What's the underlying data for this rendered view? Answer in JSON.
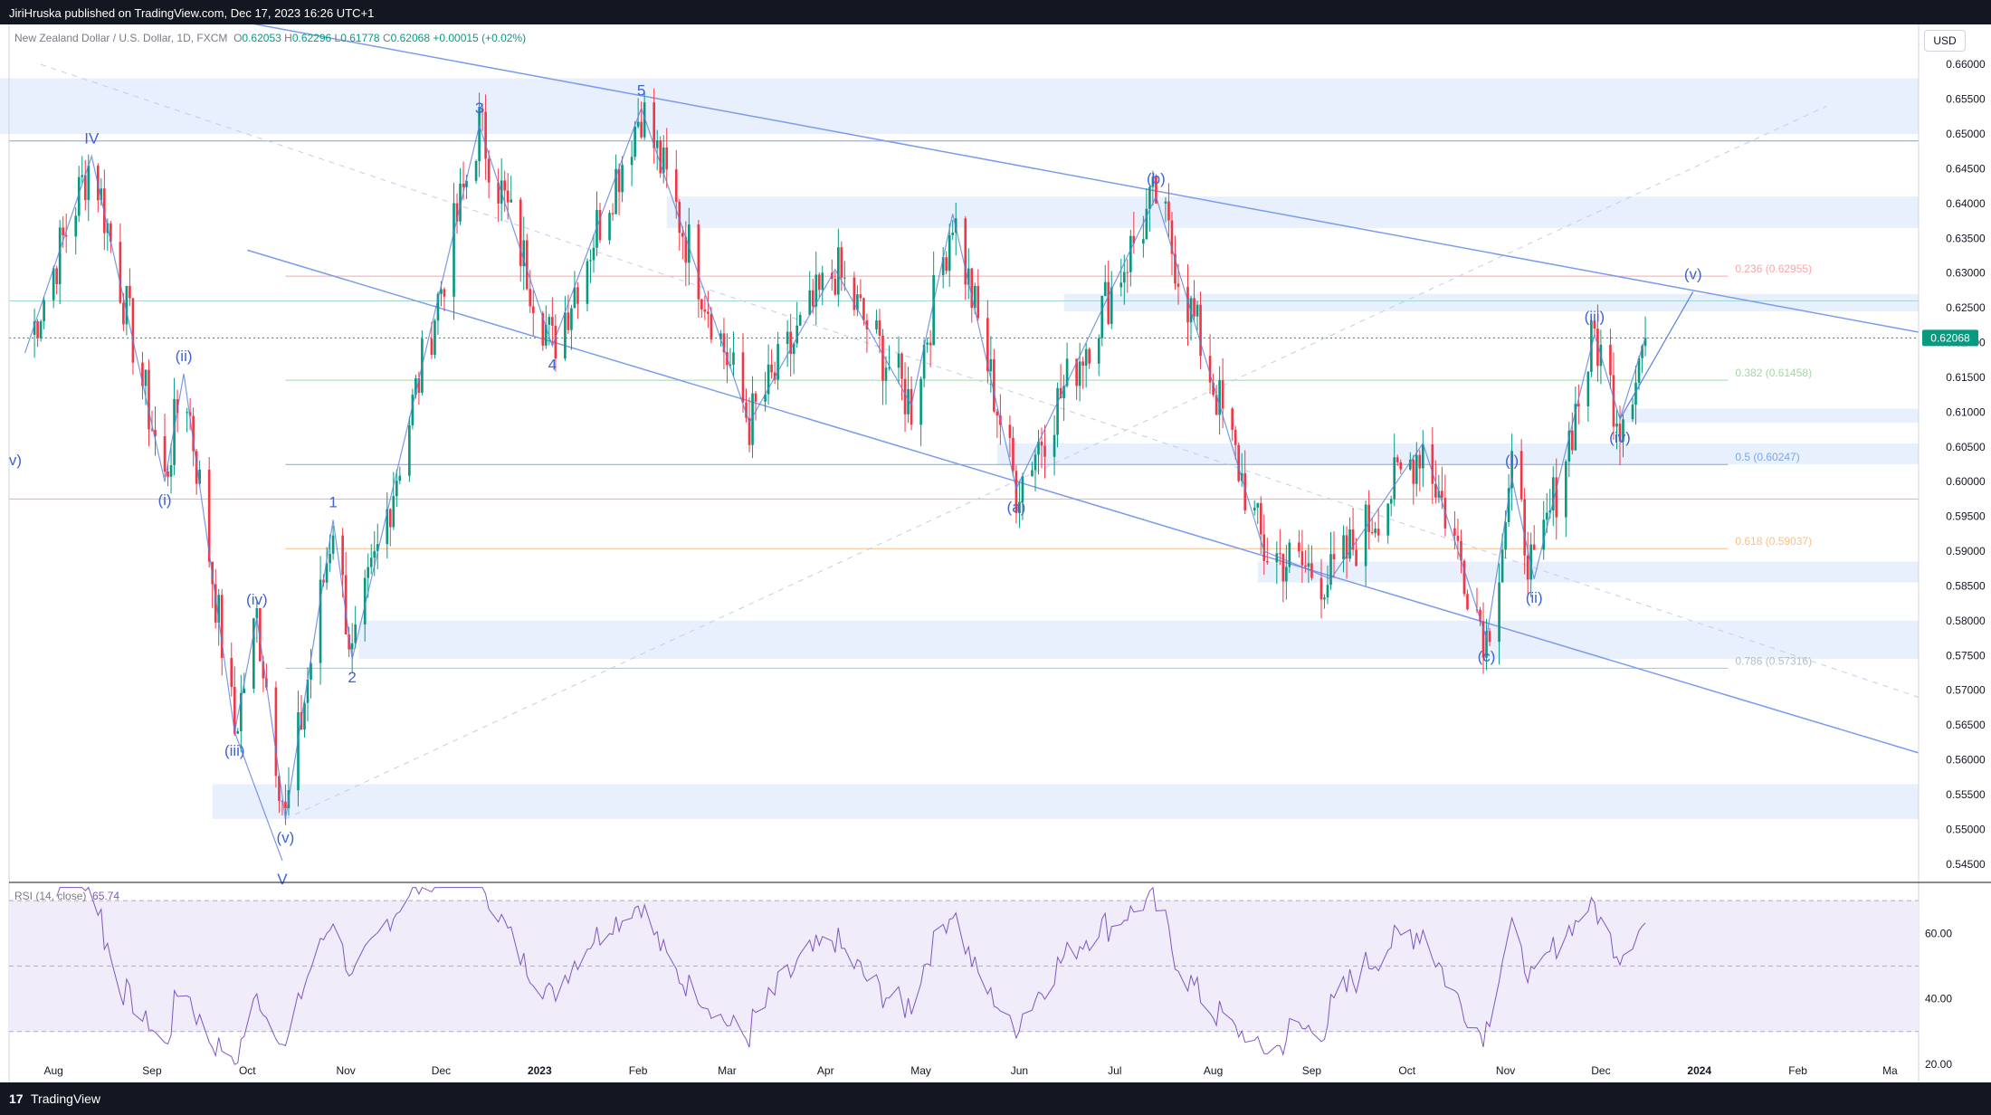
{
  "publisher": "JiriHruska published on TradingView.com, Dec 17, 2023 16:26 UTC+1",
  "footer_brand": "TradingView",
  "footer_logo": "17",
  "currency_button": "USD",
  "header": {
    "symbol": "New Zealand Dollar / U.S. Dollar, 1D, FXCM",
    "open": "0.62053",
    "high": "0.62296",
    "low": "0.61778",
    "close": "0.62068",
    "change": "+0.00015 (+0.02%)"
  },
  "rsi": {
    "label": "RSI (14, close)",
    "value": "65.74"
  },
  "colors": {
    "up": "#089981",
    "down": "#f23645",
    "wave": "#5b7fe0",
    "channel": "#7b9cec",
    "zone": "#e8effd",
    "rsi_line": "#7e57c2",
    "rsi_band": "#f1ecfa"
  },
  "chart_data": {
    "type": "candlestick",
    "title": "New Zealand Dollar / U.S. Dollar, 1D, FXCM",
    "ylim": [
      0.5425,
      0.6625
    ],
    "y_ticks": [
      "0.66000",
      "0.65500",
      "0.65000",
      "0.64500",
      "0.64000",
      "0.63500",
      "0.63000",
      "0.62500",
      "0.62000",
      "0.61500",
      "0.61000",
      "0.60500",
      "0.60000",
      "0.59500",
      "0.59000",
      "0.58500",
      "0.58000",
      "0.57500",
      "0.57000",
      "0.56500",
      "0.56000",
      "0.55500",
      "0.55000",
      "0.54500"
    ],
    "x_ticks": [
      "Aug",
      "Sep",
      "Oct",
      "Nov",
      "Dec",
      "2023",
      "Feb",
      "Mar",
      "Apr",
      "May",
      "Jun",
      "Jul",
      "Aug",
      "Sep",
      "Oct",
      "Nov",
      "Dec",
      "2024",
      "Feb",
      "Ma"
    ],
    "last_price": "0.62068",
    "swing_points": [
      {
        "date": "2022-07-23",
        "price": 0.6185
      },
      {
        "date": "2022-08-13",
        "price": 0.6468
      },
      {
        "date": "2022-09-05",
        "price": 0.6
      },
      {
        "date": "2022-09-11",
        "price": 0.6155
      },
      {
        "date": "2022-09-27",
        "price": 0.564
      },
      {
        "date": "2022-10-04",
        "price": 0.5805
      },
      {
        "date": "2022-10-13",
        "price": 0.5515
      },
      {
        "date": "2022-10-28",
        "price": 0.5945
      },
      {
        "date": "2022-11-03",
        "price": 0.5745
      },
      {
        "date": "2022-12-13",
        "price": 0.6512
      },
      {
        "date": "2023-01-05",
        "price": 0.6195
      },
      {
        "date": "2023-02-02",
        "price": 0.6537
      },
      {
        "date": "2023-03-08",
        "price": 0.6085
      },
      {
        "date": "2023-04-04",
        "price": 0.6305
      },
      {
        "date": "2023-04-28",
        "price": 0.611
      },
      {
        "date": "2023-05-11",
        "price": 0.6385
      },
      {
        "date": "2023-05-31",
        "price": 0.599
      },
      {
        "date": "2023-07-14",
        "price": 0.641
      },
      {
        "date": "2023-08-17",
        "price": 0.59
      },
      {
        "date": "2023-09-07",
        "price": 0.586
      },
      {
        "date": "2023-10-06",
        "price": 0.6055
      },
      {
        "date": "2023-10-26",
        "price": 0.5775
      },
      {
        "date": "2023-11-03",
        "price": 0.6005
      },
      {
        "date": "2023-11-10",
        "price": 0.586
      },
      {
        "date": "2023-11-29",
        "price": 0.6212
      },
      {
        "date": "2023-12-07",
        "price": 0.609
      },
      {
        "date": "2023-12-15",
        "price": 0.6207
      }
    ],
    "wave_labels": [
      {
        "text": "IV",
        "date": "2022-08-13",
        "price": 0.6468,
        "pos": "above"
      },
      {
        "text": "(ii)",
        "date": "2022-09-11",
        "price": 0.6155,
        "pos": "above"
      },
      {
        "text": "(i)",
        "date": "2022-09-05",
        "price": 0.6,
        "pos": "below"
      },
      {
        "text": "(iv)",
        "date": "2022-10-04",
        "price": 0.5805,
        "pos": "above"
      },
      {
        "text": "(iii)",
        "date": "2022-09-27",
        "price": 0.564,
        "pos": "below"
      },
      {
        "text": "(v)",
        "date": "2022-10-13",
        "price": 0.5515,
        "pos": "below"
      },
      {
        "text": "V",
        "date": "2022-10-12",
        "price": 0.5455,
        "pos": "below"
      },
      {
        "text": "1",
        "date": "2022-10-28",
        "price": 0.5945,
        "pos": "above"
      },
      {
        "text": "2",
        "date": "2022-11-03",
        "price": 0.5745,
        "pos": "below"
      },
      {
        "text": "3",
        "date": "2022-12-13",
        "price": 0.6512,
        "pos": "above"
      },
      {
        "text": "4",
        "date": "2023-01-05",
        "price": 0.6195,
        "pos": "below"
      },
      {
        "text": "5",
        "date": "2023-02-02",
        "price": 0.6537,
        "pos": "above"
      },
      {
        "text": "(a)",
        "date": "2023-05-31",
        "price": 0.599,
        "pos": "below"
      },
      {
        "text": "(b)",
        "date": "2023-07-14",
        "price": 0.641,
        "pos": "above"
      },
      {
        "text": "(c)",
        "date": "2023-10-26",
        "price": 0.5775,
        "pos": "below"
      },
      {
        "text": "(i)",
        "date": "2023-11-03",
        "price": 0.6005,
        "pos": "above"
      },
      {
        "text": "(ii)",
        "date": "2023-11-10",
        "price": 0.586,
        "pos": "below"
      },
      {
        "text": "(iii)",
        "date": "2023-11-29",
        "price": 0.6212,
        "pos": "above"
      },
      {
        "text": "(iv)",
        "date": "2023-12-07",
        "price": 0.609,
        "pos": "below"
      },
      {
        "text": "(v)",
        "date": "2023-12-30",
        "price": 0.6273,
        "pos": "above"
      },
      {
        "text": "v)",
        "date": "2022-07-20",
        "price": 0.603,
        "pos": "center"
      }
    ],
    "projection": [
      {
        "date": "2023-12-07",
        "price": 0.609
      },
      {
        "date": "2023-12-30",
        "price": 0.6273
      }
    ],
    "fib_levels": [
      {
        "label": "0.236 (0.62955)",
        "price": 0.62955,
        "color": "#f7a6aa"
      },
      {
        "label": "0.382 (0.61458)",
        "price": 0.61458,
        "color": "#a5d6a7"
      },
      {
        "label": "0.5 (0.60247)",
        "price": 0.60247,
        "color": "#7aa8e8"
      },
      {
        "label": "0.618 (0.59037)",
        "price": 0.59037,
        "color": "#f6c08a"
      },
      {
        "label": "0.786 (0.57316)",
        "price": 0.57316,
        "color": "#b0bec5"
      }
    ],
    "horizontal_lines": [
      0.649,
      0.626,
      0.5975
    ],
    "zones": [
      {
        "start": "2022-07-15",
        "end": "2024-03-10",
        "top": 0.658,
        "bottom": 0.65
      },
      {
        "start": "2023-02-10",
        "end": "2024-03-10",
        "top": 0.641,
        "bottom": 0.6365
      },
      {
        "start": "2023-06-15",
        "end": "2024-03-10",
        "top": 0.627,
        "bottom": 0.6245
      },
      {
        "start": "2023-12-07",
        "end": "2024-03-10",
        "top": 0.6105,
        "bottom": 0.6085
      },
      {
        "start": "2023-05-25",
        "end": "2024-03-10",
        "top": 0.6055,
        "bottom": 0.6025
      },
      {
        "start": "2023-08-15",
        "end": "2024-03-10",
        "top": 0.5885,
        "bottom": 0.5855
      },
      {
        "start": "2022-11-05",
        "end": "2024-03-10",
        "top": 0.58,
        "bottom": 0.5745
      },
      {
        "start": "2022-09-20",
        "end": "2024-03-10",
        "top": 0.5565,
        "bottom": 0.5515
      }
    ],
    "channel": {
      "upper": [
        {
          "date": "2022-10-01",
          "price": 0.666
        },
        {
          "date": "2024-03-10",
          "price": 0.6215
        }
      ],
      "lower": [
        {
          "date": "2022-10-01",
          "price": 0.6333
        },
        {
          "date": "2024-03-10",
          "price": 0.561
        }
      ]
    },
    "rsi": {
      "name": "RSI (14, close)",
      "ylim": [
        15,
        75
      ],
      "y_ticks": [
        "60.00",
        "40.00",
        "20.00"
      ],
      "bands": [
        70,
        30
      ],
      "midline": 50,
      "last": 65.74
    }
  }
}
